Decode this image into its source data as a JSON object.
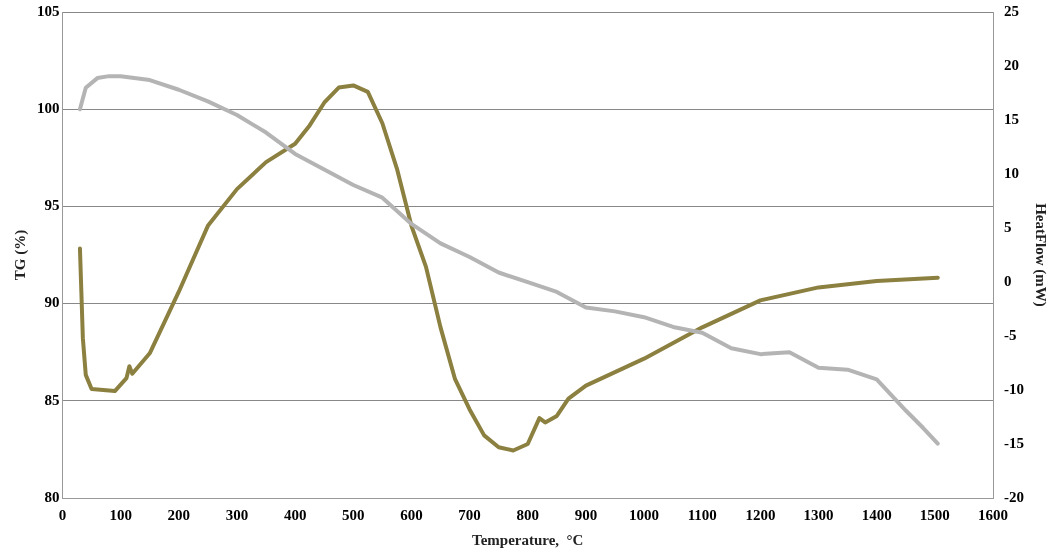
{
  "chart_data": {
    "type": "line",
    "xlabel": "Temperature,  °C",
    "ylabel": "TG (%)",
    "y2label": "HeatFlow (mW)",
    "xlim": [
      0,
      1600
    ],
    "xticks": [
      0,
      100,
      200,
      300,
      400,
      500,
      600,
      700,
      800,
      900,
      1000,
      1100,
      1200,
      1300,
      1400,
      1500,
      1600
    ],
    "ylim": [
      80,
      105
    ],
    "yticks": [
      80,
      85,
      90,
      95,
      100,
      105
    ],
    "y2lim": [
      -20,
      25
    ],
    "y2ticks": [
      -20,
      -15,
      -10,
      -5,
      0,
      5,
      10,
      15,
      20,
      25
    ],
    "grid": "y",
    "legend": false,
    "marker": "none",
    "line_style": "solid",
    "series": [
      {
        "color": "#b4b4b4",
        "x": [
          30,
          40,
          60,
          80,
          100,
          150,
          200,
          250,
          300,
          350,
          400,
          450,
          500,
          550,
          600,
          650,
          700,
          750,
          800,
          850,
          900,
          950,
          1000,
          1050,
          1100,
          1150,
          1200,
          1250,
          1300,
          1350,
          1400,
          1450,
          1480,
          1505
        ],
        "values": [
          100.0,
          101.1,
          101.6,
          101.7,
          101.7,
          101.5,
          101.0,
          100.4,
          99.7,
          98.8,
          97.7,
          96.9,
          96.1,
          95.45,
          94.1,
          93.1,
          92.4,
          91.6,
          91.1,
          90.6,
          89.8,
          89.6,
          89.3,
          88.8,
          88.5,
          87.7,
          87.4,
          87.5,
          86.7,
          86.6,
          86.1,
          84.5,
          83.6,
          82.8
        ]
      },
      {
        "color": "#8c8040",
        "axis": "y2",
        "x": [
          30,
          35,
          40,
          50,
          70,
          90,
          110,
          115,
          120,
          150,
          200,
          250,
          300,
          350,
          400,
          425,
          450,
          475,
          500,
          525,
          550,
          575,
          600,
          625,
          650,
          675,
          700,
          725,
          750,
          775,
          800,
          820,
          830,
          850,
          870,
          900,
          1000,
          1100,
          1200,
          1300,
          1400,
          1505
        ],
        "values": [
          3.1,
          -5.2,
          -8.6,
          -9.9,
          -10.0,
          -10.1,
          -8.9,
          -7.8,
          -8.5,
          -6.6,
          -0.9,
          5.2,
          8.6,
          11.1,
          12.8,
          14.5,
          16.6,
          18.0,
          18.2,
          17.6,
          14.7,
          10.5,
          5.2,
          1.4,
          -4.2,
          -9.0,
          -11.8,
          -14.2,
          -15.3,
          -15.6,
          -15.0,
          -12.6,
          -13.0,
          -12.4,
          -10.8,
          -9.6,
          -7.1,
          -4.2,
          -1.7,
          -0.5,
          0.1,
          0.4
        ]
      }
    ]
  }
}
